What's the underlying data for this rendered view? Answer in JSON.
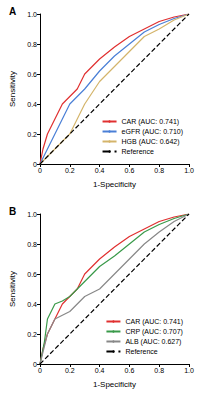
{
  "chart_data": [
    {
      "type": "line",
      "title": "A",
      "x_label": "1-Specificity",
      "y_label": "Sensitivity",
      "xlim": [
        0,
        1
      ],
      "ylim": [
        0,
        1
      ],
      "xticks": [
        0,
        0.2,
        0.4,
        0.6,
        0.8,
        {
          "value": 1,
          "label": "1.0"
        }
      ],
      "yticks": [
        0,
        0.2,
        0.4,
        0.6,
        0.8,
        {
          "value": 1,
          "label": "1.0"
        }
      ],
      "grid": false,
      "legend": "lower right",
      "series": [
        {
          "name": "CAR (AUC: 0.741)",
          "color": "#e03030",
          "line_style": "solid",
          "x": [
            0,
            0.02,
            0.05,
            0.1,
            0.15,
            0.2,
            0.25,
            0.3,
            0.4,
            0.5,
            0.6,
            0.7,
            0.8,
            0.9,
            1
          ],
          "values": [
            0,
            0.1,
            0.2,
            0.3,
            0.4,
            0.45,
            0.5,
            0.6,
            0.7,
            0.78,
            0.85,
            0.9,
            0.95,
            0.98,
            1
          ]
        },
        {
          "name": "eGFR (AUC: 0.710)",
          "color": "#4a7fd6",
          "line_style": "solid",
          "x": [
            0,
            0.05,
            0.1,
            0.15,
            0.2,
            0.3,
            0.4,
            0.5,
            0.6,
            0.7,
            0.8,
            0.9,
            1
          ],
          "values": [
            0,
            0.1,
            0.2,
            0.3,
            0.4,
            0.5,
            0.62,
            0.72,
            0.8,
            0.88,
            0.93,
            0.97,
            1
          ]
        },
        {
          "name": "HGB (AUC: 0.642)",
          "color": "#d4b46a",
          "line_style": "solid",
          "x": [
            0,
            0.05,
            0.1,
            0.2,
            0.25,
            0.3,
            0.4,
            0.5,
            0.6,
            0.7,
            0.8,
            0.9,
            1
          ],
          "values": [
            0,
            0.05,
            0.1,
            0.2,
            0.3,
            0.4,
            0.55,
            0.65,
            0.75,
            0.85,
            0.9,
            0.96,
            1
          ]
        },
        {
          "name": "Reference",
          "color": "#000000",
          "line_style": "dashed",
          "x": [
            0,
            1
          ],
          "values": [
            0,
            1
          ]
        }
      ]
    },
    {
      "type": "line",
      "title": "B",
      "x_label": "1-Specificity",
      "y_label": "Sensitivity",
      "xlim": [
        0,
        1
      ],
      "ylim": [
        0,
        1
      ],
      "xticks": [
        0,
        0.2,
        0.4,
        0.6,
        0.8,
        {
          "value": 1,
          "label": "1.0"
        }
      ],
      "yticks": [
        0,
        0.2,
        0.4,
        0.6,
        0.8,
        {
          "value": 1,
          "label": "1.0"
        }
      ],
      "grid": false,
      "legend": "lower right",
      "series": [
        {
          "name": "CAR (AUC: 0.741)",
          "color": "#e03030",
          "line_style": "solid",
          "x": [
            0,
            0.02,
            0.05,
            0.1,
            0.15,
            0.2,
            0.25,
            0.3,
            0.4,
            0.5,
            0.6,
            0.7,
            0.8,
            0.9,
            1
          ],
          "values": [
            0,
            0.1,
            0.2,
            0.3,
            0.4,
            0.45,
            0.5,
            0.6,
            0.7,
            0.78,
            0.85,
            0.9,
            0.95,
            0.98,
            1
          ]
        },
        {
          "name": "CRP (AUC: 0.707)",
          "color": "#3a9a4a",
          "line_style": "solid",
          "x": [
            0,
            0.03,
            0.05,
            0.1,
            0.15,
            0.2,
            0.3,
            0.4,
            0.5,
            0.6,
            0.7,
            0.8,
            0.9,
            1
          ],
          "values": [
            0,
            0.15,
            0.3,
            0.4,
            0.42,
            0.45,
            0.55,
            0.65,
            0.72,
            0.8,
            0.88,
            0.93,
            0.97,
            1
          ]
        },
        {
          "name": "ALB (AUC: 0.627)",
          "color": "#888888",
          "line_style": "solid",
          "x": [
            0,
            0.05,
            0.1,
            0.2,
            0.3,
            0.4,
            0.5,
            0.6,
            0.7,
            0.8,
            0.9,
            1
          ],
          "values": [
            0,
            0.2,
            0.3,
            0.35,
            0.45,
            0.5,
            0.6,
            0.7,
            0.8,
            0.88,
            0.95,
            1
          ]
        },
        {
          "name": "Reference",
          "color": "#000000",
          "line_style": "dashed",
          "x": [
            0,
            1
          ],
          "values": [
            0,
            1
          ]
        }
      ]
    }
  ]
}
